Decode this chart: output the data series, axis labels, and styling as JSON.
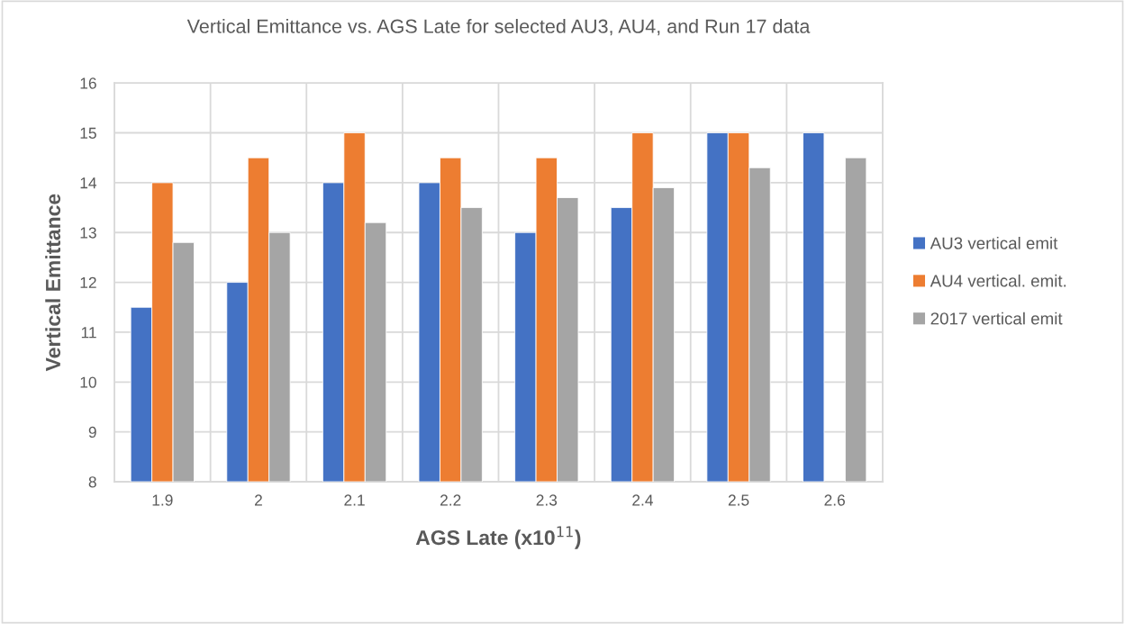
{
  "chart_data": {
    "type": "bar",
    "title": "Vertical Emittance vs. AGS Late for selected AU3, AU4, and Run 17 data",
    "xlabel": "AGS Late (x10$^{11}$)",
    "ylabel": "Vertical Emittance",
    "categories": [
      "1.9",
      "2",
      "2.1",
      "2.2",
      "2.3",
      "2.4",
      "2.5",
      "2.6"
    ],
    "series": [
      {
        "name": "AU3 vertical emit",
        "color": "#4472c4",
        "values": [
          11.5,
          12,
          14,
          14,
          13,
          13.5,
          15,
          15
        ]
      },
      {
        "name": "AU4 vertical. emit.",
        "color": "#ed7d31",
        "values": [
          14,
          14.5,
          15,
          14.5,
          14.5,
          15,
          15,
          null
        ]
      },
      {
        "name": "2017 vertical emit",
        "color": "#a5a5a5",
        "values": [
          12.8,
          13,
          13.2,
          13.5,
          13.7,
          13.9,
          14.3,
          14.5
        ]
      }
    ],
    "ylim": [
      8,
      16
    ],
    "yticks": [
      8,
      9,
      10,
      11,
      12,
      13,
      14,
      15,
      16
    ],
    "grid": true,
    "legend": "right"
  }
}
